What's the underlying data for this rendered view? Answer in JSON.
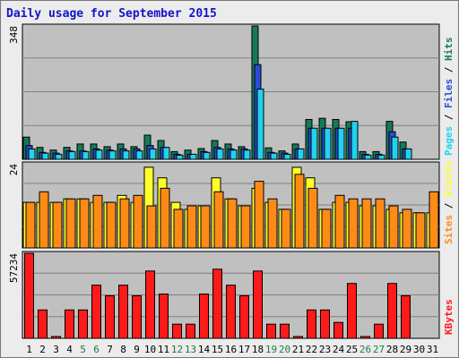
{
  "chart_data": {
    "type": "bar",
    "title": "Daily usage for September 2015",
    "categories": [
      "1",
      "2",
      "3",
      "4",
      "5",
      "6",
      "7",
      "8",
      "9",
      "10",
      "11",
      "12",
      "13",
      "14",
      "15",
      "16",
      "17",
      "18",
      "19",
      "20",
      "21",
      "22",
      "23",
      "24",
      "25",
      "26",
      "27",
      "28",
      "29",
      "30",
      "31"
    ],
    "weekend_days": [
      "5",
      "6",
      "12",
      "13",
      "19",
      "20",
      "26",
      "27"
    ],
    "colors": {
      "hits": "#157a5d",
      "files": "#2b4bd8",
      "pages": "#1fd3ef",
      "visits": "#ffff2a",
      "sites": "#ff8b17",
      "kbytes": "#ff1a1a",
      "plot_background": "#c0c0c0",
      "title": "#1414c8",
      "weekend_tick": "#1a7a4a"
    },
    "panels": [
      {
        "id": "hits-files-pages",
        "scale_label": "348",
        "ylim": [
          0,
          348
        ],
        "legend": [
          {
            "label": "Pages",
            "color": "#1fd3ef"
          },
          {
            "label": " / ",
            "color": "#000000"
          },
          {
            "label": "Files",
            "color": "#2b4bd8"
          },
          {
            "label": " / ",
            "color": "#000000"
          },
          {
            "label": "Hits",
            "color": "#157a5d"
          }
        ],
        "series": [
          {
            "name": "Hits",
            "color": "#157a5d",
            "values": [
              58,
              31,
              24,
              31,
              40,
              40,
              33,
              40,
              33,
              63,
              49,
              20,
              24,
              28,
              49,
              40,
              33,
              348,
              30,
              22,
              40,
              104,
              107,
              104,
              98,
              20,
              20,
              99,
              45,
              0,
              0
            ]
          },
          {
            "name": "Files",
            "color": "#2b4bd8",
            "values": [
              36,
              18,
              16,
              22,
              22,
              27,
              24,
              27,
              27,
              36,
              31,
              13,
              13,
              20,
              31,
              27,
              27,
              247,
              18,
              16,
              27,
              81,
              81,
              81,
              81,
              13,
              13,
              72,
              27,
              0,
              0
            ]
          },
          {
            "name": "Pages",
            "color": "#1fd3ef",
            "values": [
              27,
              16,
              13,
              20,
              20,
              24,
              22,
              22,
              22,
              27,
              31,
              11,
              13,
              18,
              27,
              24,
              24,
              183,
              16,
              13,
              27,
              81,
              81,
              81,
              99,
              11,
              11,
              58,
              27,
              0,
              0
            ]
          }
        ]
      },
      {
        "id": "visits-sites",
        "scale_label": "24",
        "ylim": [
          0,
          24
        ],
        "legend": [
          {
            "label": "Sites",
            "color": "#ff8b17"
          },
          {
            "label": " / ",
            "color": "#000000"
          },
          {
            "label": "Visits",
            "color": "#ffff2a"
          }
        ],
        "series": [
          {
            "name": "Visits",
            "color": "#ffff2a",
            "values": [
              13,
              13,
              13,
              14,
              14,
              13,
              13,
              15,
              13,
              23,
              20,
              13,
              11,
              12,
              20,
              14,
              12,
              17,
              13,
              11,
              23,
              20,
              11,
              13,
              13,
              12,
              12,
              11,
              10,
              10,
              10
            ]
          },
          {
            "name": "Sites",
            "color": "#ff8b17",
            "values": [
              13,
              16,
              13,
              14,
              14,
              15,
              13,
              14,
              15,
              12,
              17,
              11,
              12,
              12,
              16,
              14,
              12,
              19,
              14,
              11,
              21,
              17,
              11,
              15,
              14,
              14,
              14,
              12,
              11,
              10,
              16
            ]
          }
        ]
      },
      {
        "id": "kbytes",
        "scale_label": "57234",
        "ylim": [
          0,
          57234
        ],
        "legend": [
          {
            "label": "KBytes",
            "color": "#ff1a1a"
          }
        ],
        "series": [
          {
            "name": "KBytes",
            "color": "#ff1a1a",
            "values": [
              57234,
              19079,
              1073,
              19079,
              19079,
              35768,
              28616,
              35768,
              28616,
              45311,
              29808,
              9540,
              9540,
              29808,
              46503,
              35768,
              28616,
              45311,
              9540,
              9540,
              1073,
              19079,
              19079,
              10731,
              36960,
              1073,
              9540,
              36960,
              28616,
              0,
              0
            ]
          }
        ]
      }
    ]
  }
}
